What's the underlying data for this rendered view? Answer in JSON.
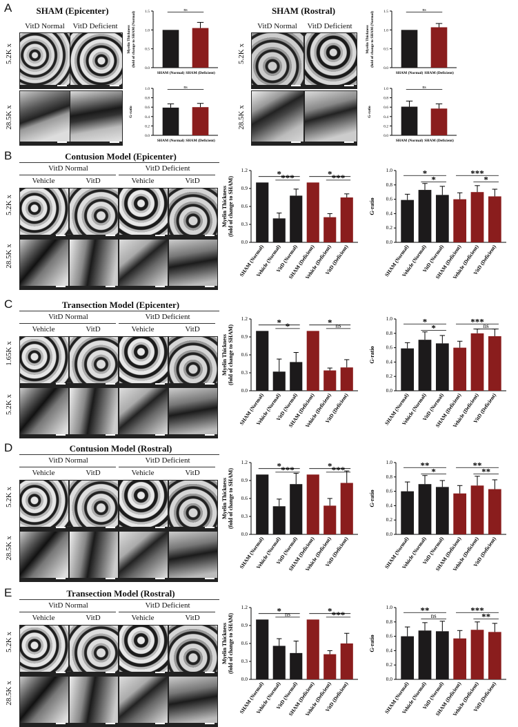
{
  "panels": [
    {
      "letter": "A",
      "titles": [
        "SHAM (Epicenter)",
        "SHAM (Rostral)"
      ],
      "columns": [
        "VitD Normal",
        "VitD Deficient"
      ],
      "rows": [
        "5.2K x",
        "28.5K x"
      ]
    },
    {
      "letter": "B",
      "title": "Contusion Model (Epicenter)",
      "groups": [
        "VitD Normal",
        "VitD Deficient"
      ],
      "sub": [
        "Vehicle",
        "VitD",
        "Vehicle",
        "VitD"
      ],
      "rows": [
        "5.2K x",
        "28.5K x"
      ]
    },
    {
      "letter": "C",
      "title": "Transection Model (Epicenter)",
      "groups": [
        "VitD Normal",
        "VitD Deficient"
      ],
      "sub": [
        "Vehicle",
        "VitD",
        "Vehicle",
        "VitD"
      ],
      "rows": [
        "1.65K x",
        "5.2K x"
      ]
    },
    {
      "letter": "D",
      "title": "Contusion Model (Rostral)",
      "groups": [
        "VitD Normal",
        "VitD Deficient"
      ],
      "sub": [
        "Vehicle",
        "VitD",
        "Vehicle",
        "VitD"
      ],
      "rows": [
        "5.2K x",
        "28.5K x"
      ]
    },
    {
      "letter": "E",
      "title": "Transection Model (Rostral)",
      "groups": [
        "VitD Normal",
        "VitD Deficient"
      ],
      "sub": [
        "Vehicle",
        "VitD",
        "Vehicle",
        "VitD"
      ],
      "rows": [
        "5.2K x",
        "28.5K x"
      ]
    }
  ],
  "colors": {
    "normal": "#1c1a1b",
    "deficient": "#8a1d1d"
  },
  "chart_data": [
    {
      "id": "A-myelin-epi",
      "type": "bar",
      "ylabel": "Myelin Thickness (fold of change to SHAM (Normal)",
      "categories": [
        "SHAM (Normal)",
        "SHAM (Deficient)"
      ],
      "values": [
        1.0,
        1.05
      ],
      "errors": [
        0,
        0.15
      ],
      "ylim": [
        0,
        1.5
      ],
      "yticks": [
        "0.0",
        "0.5",
        "1.0",
        "1.5"
      ],
      "sig": [
        {
          "a": 0,
          "b": 1,
          "label": "ns"
        }
      ]
    },
    {
      "id": "A-gratio-epi",
      "type": "bar",
      "ylabel": "G-ratio",
      "categories": [
        "SHAM (Normal)",
        "SHAM (Deficient)"
      ],
      "values": [
        0.59,
        0.6
      ],
      "errors": [
        0.08,
        0.08
      ],
      "ylim": [
        0,
        1.0
      ],
      "yticks": [
        "0.0",
        "0.2",
        "0.4",
        "0.6",
        "0.8",
        "1.0"
      ],
      "sig": [
        {
          "a": 0,
          "b": 1,
          "label": "ns"
        }
      ]
    },
    {
      "id": "A-myelin-ros",
      "type": "bar",
      "ylabel": "Myelin Thickness (fold of change to SHAM (Normal)",
      "categories": [
        "SHAM (Normal)",
        "SHAM (Deficient)"
      ],
      "values": [
        1.0,
        1.07
      ],
      "errors": [
        0,
        0.1
      ],
      "ylim": [
        0,
        1.5
      ],
      "yticks": [
        "0.0",
        "0.5",
        "1.0",
        "1.5"
      ],
      "sig": [
        {
          "a": 0,
          "b": 1,
          "label": "ns"
        }
      ]
    },
    {
      "id": "A-gratio-ros",
      "type": "bar",
      "ylabel": "G-ratio",
      "categories": [
        "SHAM (Normal)",
        "SHAM (Deficient)"
      ],
      "values": [
        0.61,
        0.57
      ],
      "errors": [
        0.12,
        0.1
      ],
      "ylim": [
        0,
        1.0
      ],
      "yticks": [
        "0.0",
        "0.2",
        "0.4",
        "0.6",
        "0.8",
        "1.0"
      ],
      "sig": [
        {
          "a": 0,
          "b": 1,
          "label": "ns"
        }
      ]
    },
    {
      "id": "B-myelin",
      "type": "bar",
      "ylabel": "Myelin Thickness (fold of change to SHAM)",
      "categories": [
        "SHAM (Normal)",
        "Vehicle (Normal)",
        "VitD (Normal)",
        "SHAM (Deficient)",
        "Vehicle (Deficient)",
        "VitD (Deficient)"
      ],
      "values": [
        1.0,
        0.4,
        0.78,
        1.0,
        0.42,
        0.75
      ],
      "errors": [
        0,
        0.09,
        0.11,
        0,
        0.06,
        0.06
      ],
      "ylim": [
        0,
        1.2
      ],
      "yticks": [
        "0.0",
        "0.3",
        "0.6",
        "0.9",
        "1.2"
      ],
      "sig": [
        {
          "a": 0,
          "b": 2,
          "label": "*",
          "h": 1.1
        },
        {
          "a": 1,
          "b": 2,
          "label": "***",
          "h": 1.04
        },
        {
          "a": 3,
          "b": 5,
          "label": "*",
          "h": 1.1
        },
        {
          "a": 4,
          "b": 5,
          "label": "***",
          "h": 1.04
        }
      ]
    },
    {
      "id": "B-gratio",
      "type": "bar",
      "ylabel": "G-ratio",
      "categories": [
        "SHAM (Normal)",
        "Vehicle (Normal)",
        "VitD (Normal)",
        "SHAM (Deficient)",
        "Vehicle (Deficient)",
        "VitD (Deficient)"
      ],
      "values": [
        0.59,
        0.73,
        0.66,
        0.6,
        0.7,
        0.64
      ],
      "errors": [
        0.08,
        0.09,
        0.12,
        0.09,
        0.09,
        0.1
      ],
      "ylim": [
        0,
        1.0
      ],
      "yticks": [
        "0.0",
        "0.2",
        "0.4",
        "0.6",
        "0.8",
        "1.0"
      ],
      "sig": [
        {
          "a": 0,
          "b": 2,
          "label": "*",
          "h": 0.93
        },
        {
          "a": 1,
          "b": 2,
          "label": "*",
          "h": 0.84
        },
        {
          "a": 3,
          "b": 5,
          "label": "***",
          "h": 0.93
        },
        {
          "a": 4,
          "b": 5,
          "label": "*",
          "h": 0.84
        }
      ]
    },
    {
      "id": "C-myelin",
      "type": "bar",
      "ylabel": "Myelin Thickness (fold of change to SHAM)",
      "categories": [
        "SHAM (Normal)",
        "Vehicle (Normal)",
        "VitD (Normal)",
        "SHAM (Deficient)",
        "Vehicle (Deficient)",
        "VitD (Deficient)"
      ],
      "values": [
        1.0,
        0.32,
        0.48,
        1.0,
        0.34,
        0.39
      ],
      "errors": [
        0,
        0.21,
        0.16,
        0,
        0.04,
        0.13
      ],
      "ylim": [
        0,
        1.2
      ],
      "yticks": [
        "0.0",
        "0.3",
        "0.6",
        "0.9",
        "1.2"
      ],
      "sig": [
        {
          "a": 0,
          "b": 2,
          "label": "*",
          "h": 1.1
        },
        {
          "a": 1,
          "b": 2,
          "label": "*",
          "h": 1.04
        },
        {
          "a": 3,
          "b": 5,
          "label": "*",
          "h": 1.1
        },
        {
          "a": 4,
          "b": 5,
          "label": "ns",
          "h": 1.04
        }
      ]
    },
    {
      "id": "C-gratio",
      "type": "bar",
      "ylabel": "G-ratio",
      "categories": [
        "SHAM (Normal)",
        "Vehicle (Normal)",
        "VitD (Normal)",
        "SHAM (Deficient)",
        "Vehicle (Deficient)",
        "VitD (Deficient)"
      ],
      "values": [
        0.59,
        0.71,
        0.66,
        0.6,
        0.8,
        0.76
      ],
      "errors": [
        0.08,
        0.11,
        0.11,
        0.09,
        0.06,
        0.1
      ],
      "ylim": [
        0,
        1.0
      ],
      "yticks": [
        "0.0",
        "0.2",
        "0.4",
        "0.6",
        "0.8",
        "1.0"
      ],
      "sig": [
        {
          "a": 0,
          "b": 2,
          "label": "*",
          "h": 0.93
        },
        {
          "a": 1,
          "b": 2,
          "label": "*",
          "h": 0.84
        },
        {
          "a": 3,
          "b": 5,
          "label": "***",
          "h": 0.93
        },
        {
          "a": 4,
          "b": 5,
          "label": "ns",
          "h": 0.86
        }
      ]
    },
    {
      "id": "D-myelin",
      "type": "bar",
      "ylabel": "Myelin Thickness (fold of change to SHAM)",
      "categories": [
        "SHAM (Normal)",
        "Vehicle (Normal)",
        "VitD (Normal)",
        "SHAM (Deficient)",
        "Vehicle (Deficient)",
        "VitD (Deficient)"
      ],
      "values": [
        1.0,
        0.47,
        0.84,
        1.0,
        0.48,
        0.86
      ],
      "errors": [
        0,
        0.12,
        0.18,
        0,
        0.12,
        0.2
      ],
      "ylim": [
        0,
        1.2
      ],
      "yticks": [
        "0.0",
        "0.3",
        "0.6",
        "0.9",
        "1.2"
      ],
      "sig": [
        {
          "a": 0,
          "b": 2,
          "label": "*",
          "h": 1.1
        },
        {
          "a": 1,
          "b": 2,
          "label": "***",
          "h": 1.04
        },
        {
          "a": 3,
          "b": 5,
          "label": "*",
          "h": 1.1
        },
        {
          "a": 4,
          "b": 5,
          "label": "***",
          "h": 1.04
        }
      ]
    },
    {
      "id": "D-gratio",
      "type": "bar",
      "ylabel": "G-ratio",
      "categories": [
        "SHAM (Normal)",
        "Vehicle (Normal)",
        "VitD (Normal)",
        "SHAM (Deficient)",
        "Vehicle (Deficient)",
        "VitD (Deficient)"
      ],
      "values": [
        0.6,
        0.7,
        0.66,
        0.57,
        0.68,
        0.63
      ],
      "errors": [
        0.13,
        0.12,
        0.09,
        0.11,
        0.13,
        0.13
      ],
      "ylim": [
        0,
        1.0
      ],
      "yticks": [
        "0.0",
        "0.2",
        "0.4",
        "0.6",
        "0.8",
        "1.0"
      ],
      "sig": [
        {
          "a": 0,
          "b": 2,
          "label": "**",
          "h": 0.93
        },
        {
          "a": 1,
          "b": 2,
          "label": "*",
          "h": 0.84
        },
        {
          "a": 3,
          "b": 5,
          "label": "**",
          "h": 0.93
        },
        {
          "a": 4,
          "b": 5,
          "label": "**",
          "h": 0.84
        }
      ]
    },
    {
      "id": "E-myelin",
      "type": "bar",
      "ylabel": "Myelin Thickness (fold of change to SHAM)",
      "categories": [
        "SHAM (Normal)",
        "Vehicle (Normal)",
        "VitD (Normal)",
        "SHAM (Deficient)",
        "Vehicle (Deficient)",
        "VitD (Deficient)"
      ],
      "values": [
        1.0,
        0.56,
        0.44,
        1.0,
        0.42,
        0.6
      ],
      "errors": [
        0,
        0.12,
        0.2,
        0,
        0.06,
        0.17
      ],
      "ylim": [
        0,
        1.2
      ],
      "yticks": [
        "0.0",
        "0.3",
        "0.6",
        "0.9",
        "1.2"
      ],
      "sig": [
        {
          "a": 0,
          "b": 2,
          "label": "*",
          "h": 1.1
        },
        {
          "a": 1,
          "b": 2,
          "label": "ns",
          "h": 1.04
        },
        {
          "a": 3,
          "b": 5,
          "label": "*",
          "h": 1.1
        },
        {
          "a": 4,
          "b": 5,
          "label": "***",
          "h": 1.04
        }
      ]
    },
    {
      "id": "E-gratio",
      "type": "bar",
      "ylabel": "G-ratio",
      "categories": [
        "SHAM (Normal)",
        "Vehicle (Normal)",
        "VitD (Normal)",
        "SHAM (Deficient)",
        "Vehicle (Deficient)",
        "VitD (Deficient)"
      ],
      "values": [
        0.6,
        0.68,
        0.67,
        0.57,
        0.69,
        0.66
      ],
      "errors": [
        0.13,
        0.11,
        0.14,
        0.11,
        0.11,
        0.12
      ],
      "ylim": [
        0,
        1.0
      ],
      "yticks": [
        "0.0",
        "0.2",
        "0.4",
        "0.6",
        "0.8",
        "1.0"
      ],
      "sig": [
        {
          "a": 0,
          "b": 2,
          "label": "**",
          "h": 0.93
        },
        {
          "a": 1,
          "b": 2,
          "label": "ns",
          "h": 0.84
        },
        {
          "a": 3,
          "b": 5,
          "label": "***",
          "h": 0.93
        },
        {
          "a": 4,
          "b": 5,
          "label": "**",
          "h": 0.84
        }
      ]
    }
  ]
}
